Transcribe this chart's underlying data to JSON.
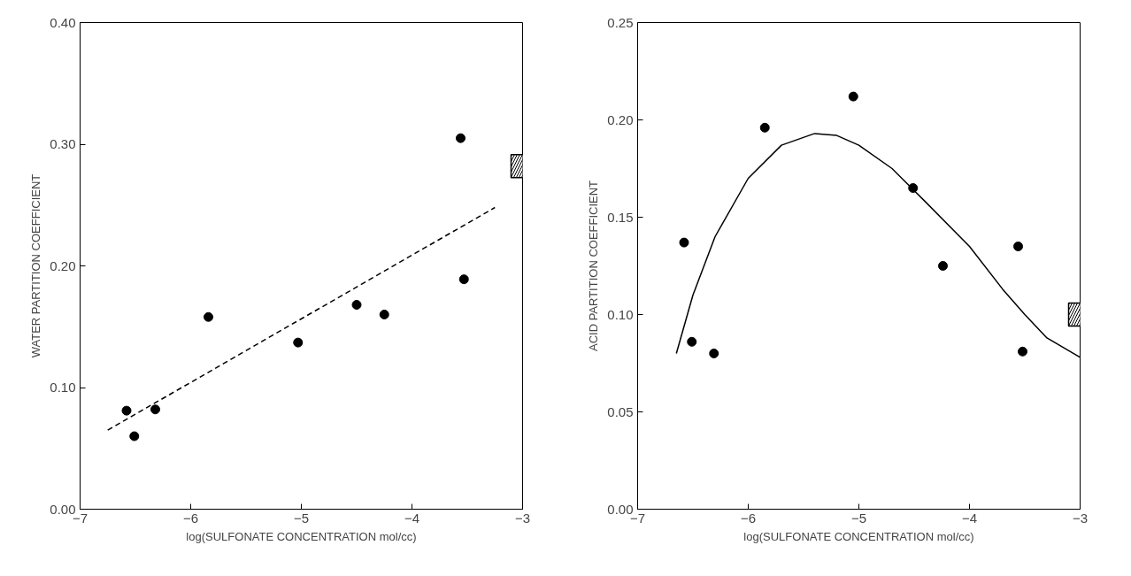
{
  "chart_data": [
    {
      "type": "scatter",
      "xlabel": "log(SULFONATE CONCENTRATION mol/cc)",
      "ylabel": "WATER PARTITION COEFFICIENT",
      "xlim": [
        -7,
        -3
      ],
      "ylim": [
        0,
        0.4
      ],
      "xticks": [
        -7,
        -6,
        -5,
        -4,
        -3
      ],
      "yticks": [
        {
          "value": 0,
          "label": "0.00"
        },
        {
          "value": 0.1,
          "label": "0.10"
        },
        {
          "value": 0.2,
          "label": "0.20"
        },
        {
          "value": 0.3,
          "label": "0.30"
        },
        {
          "value": 0.4,
          "label": "0.40"
        }
      ],
      "grid": false,
      "series": [
        {
          "marker": "circle",
          "color": "#000000",
          "x": [
            -6.58,
            -6.51,
            -6.32,
            -5.84,
            -5.03,
            -4.5,
            -4.25,
            -3.56,
            -3.53
          ],
          "values": [
            0.081,
            0.06,
            0.082,
            0.158,
            0.137,
            0.168,
            0.16,
            0.305,
            0.189
          ]
        },
        {
          "marker": "square",
          "color": "#000000",
          "x": [
            -3
          ],
          "values": [
            0.282
          ]
        },
        {
          "type": "line",
          "line_style": "dashed",
          "color": "#000000",
          "x": [
            -6.75,
            -3.25
          ],
          "values": [
            0.065,
            0.248
          ]
        }
      ]
    },
    {
      "type": "scatter",
      "xlabel": "log(SULFONATE CONCENTRATION mol/cc)",
      "ylabel": "ACID PARTITION COEFFICIENT",
      "xlim": [
        -7,
        -3
      ],
      "ylim": [
        0,
        0.25
      ],
      "xticks": [
        -7,
        -6,
        -5,
        -4,
        -3
      ],
      "yticks": [
        {
          "value": 0,
          "label": "0.00"
        },
        {
          "value": 0.05,
          "label": "0.05"
        },
        {
          "value": 0.1,
          "label": "0.10"
        },
        {
          "value": 0.15,
          "label": "0.15"
        },
        {
          "value": 0.2,
          "label": "0.20"
        },
        {
          "value": 0.25,
          "label": "0.25"
        }
      ],
      "grid": false,
      "series": [
        {
          "marker": "circle",
          "color": "#000000",
          "x": [
            -6.58,
            -6.51,
            -6.31,
            -5.85,
            -5.05,
            -4.51,
            -4.24,
            -3.56,
            -3.52
          ],
          "values": [
            0.137,
            0.086,
            0.08,
            0.196,
            0.212,
            0.165,
            0.125,
            0.135,
            0.081
          ]
        },
        {
          "marker": "square",
          "color": "#000000",
          "x": [
            -3
          ],
          "values": [
            0.1
          ]
        },
        {
          "type": "line",
          "line_style": "solid",
          "color": "#000000",
          "x": [
            -6.65,
            -6.5,
            -6.3,
            -6.0,
            -5.7,
            -5.4,
            -5.2,
            -5.0,
            -4.7,
            -4.4,
            -4.0,
            -3.7,
            -3.5,
            -3.3,
            -3.0
          ],
          "values": [
            0.08,
            0.11,
            0.14,
            0.17,
            0.187,
            0.193,
            0.192,
            0.187,
            0.175,
            0.158,
            0.135,
            0.113,
            0.1,
            0.088,
            0.078
          ]
        }
      ]
    }
  ]
}
